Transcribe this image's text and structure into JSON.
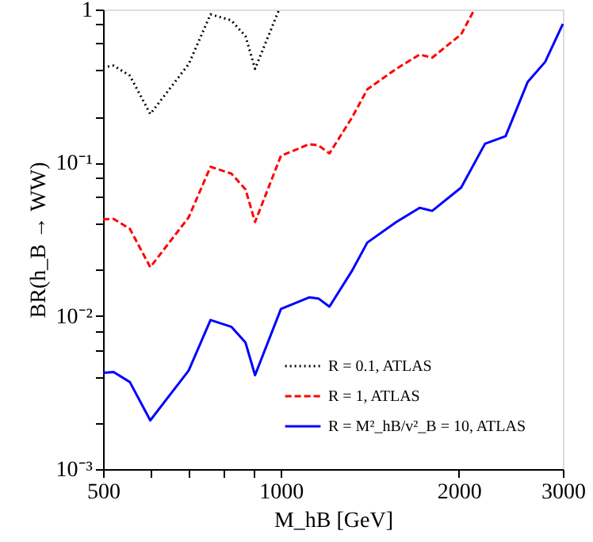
{
  "chart_data": {
    "type": "line",
    "xlabel": "M_hB [GeV]",
    "ylabel": "BR(h_B → WW)",
    "log": "xy",
    "grid": false,
    "legend": "bottom right",
    "marker": "none",
    "xlim": [
      500,
      3000
    ],
    "ylim": [
      0.001,
      1
    ],
    "xticks": [
      500,
      {
        "value": 600,
        "label": null
      },
      {
        "value": 700,
        "label": null
      },
      {
        "value": 800,
        "label": null
      },
      {
        "value": 900,
        "label": null
      },
      1000,
      2000,
      3000
    ],
    "yticks": [
      {
        "value": 0.001,
        "label": "10⁻³"
      },
      {
        "value": 0.002,
        "label": null
      },
      {
        "value": 0.004,
        "label": null
      },
      {
        "value": 0.006,
        "label": null
      },
      {
        "value": 0.008,
        "label": null
      },
      {
        "value": 0.01,
        "label": "10⁻²"
      },
      {
        "value": 0.02,
        "label": null
      },
      {
        "value": 0.04,
        "label": null
      },
      {
        "value": 0.06,
        "label": null
      },
      {
        "value": 0.08,
        "label": null
      },
      {
        "value": 0.1,
        "label": "10⁻¹"
      },
      {
        "value": 0.2,
        "label": null
      },
      {
        "value": 0.4,
        "label": null
      },
      {
        "value": 0.6,
        "label": null
      },
      {
        "value": 0.8,
        "label": null
      },
      1
    ],
    "series": [
      {
        "name": "R = 0.1, ATLAS",
        "color": "#000000",
        "line_style": "dotted",
        "x": [
          500,
          521,
          555,
          601,
          698,
          760,
          824,
          871,
          904,
          993
        ],
        "values": [
          0.42,
          0.43,
          0.37,
          0.208,
          0.44,
          0.93,
          0.85,
          0.67,
          0.41,
          1.0
        ]
      },
      {
        "name": "R = 1, ATLAS",
        "color": "#ff0000",
        "line_style": "dashed",
        "x": [
          500,
          521,
          555,
          601,
          698,
          760,
          824,
          871,
          904,
          1000,
          1116,
          1157,
          1208,
          1318,
          1400,
          1567,
          1717,
          1803,
          2018,
          2125
        ],
        "values": [
          0.0427,
          0.043,
          0.037,
          0.0208,
          0.044,
          0.094,
          0.085,
          0.067,
          0.041,
          0.111,
          0.132,
          0.13,
          0.115,
          0.196,
          0.301,
          0.41,
          0.508,
          0.485,
          0.688,
          1.0
        ]
      },
      {
        "name": "R = M²_hB/v²_B = 10, ATLAS",
        "color": "#0000ff",
        "line_style": "solid",
        "x": [
          500,
          521,
          555,
          601,
          698,
          760,
          824,
          871,
          904,
          1000,
          1116,
          1157,
          1208,
          1318,
          1400,
          1567,
          1717,
          1803,
          2018,
          2215,
          2400,
          2615,
          2800,
          3000
        ],
        "values": [
          0.00425,
          0.0043,
          0.0037,
          0.00208,
          0.0044,
          0.0094,
          0.0085,
          0.0067,
          0.0041,
          0.0111,
          0.0132,
          0.013,
          0.0115,
          0.0196,
          0.0301,
          0.041,
          0.0508,
          0.0485,
          0.0688,
          0.133,
          0.149,
          0.336,
          0.455,
          0.805
        ]
      }
    ]
  }
}
